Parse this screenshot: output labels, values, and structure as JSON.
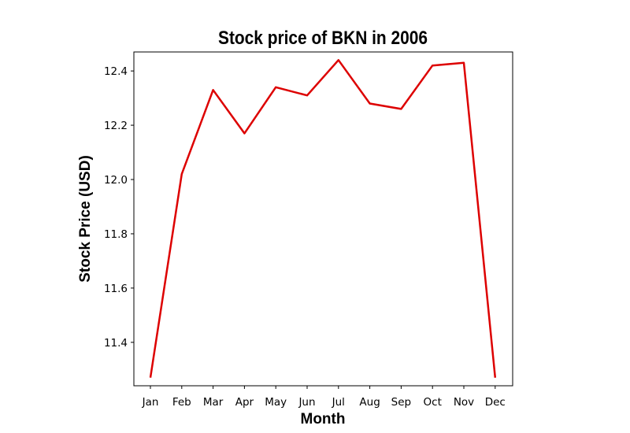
{
  "chart_data": {
    "type": "line",
    "title": "Stock price of BKN in 2006",
    "xlabel": "Month",
    "ylabel": "Stock Price (USD)",
    "categories": [
      "Jan",
      "Feb",
      "Mar",
      "Apr",
      "May",
      "Jun",
      "Jul",
      "Aug",
      "Sep",
      "Oct",
      "Nov",
      "Dec"
    ],
    "series": [
      {
        "values": [
          11.27,
          12.02,
          12.33,
          12.17,
          12.34,
          12.31,
          12.44,
          12.28,
          12.26,
          12.42,
          12.43,
          11.27
        ],
        "color": "#dd0000"
      }
    ],
    "yticks": [
      "11.4",
      "11.6",
      "11.8",
      "12.0",
      "12.2",
      "12.4"
    ],
    "ylim": [
      11.24,
      12.47
    ],
    "grid": false
  }
}
